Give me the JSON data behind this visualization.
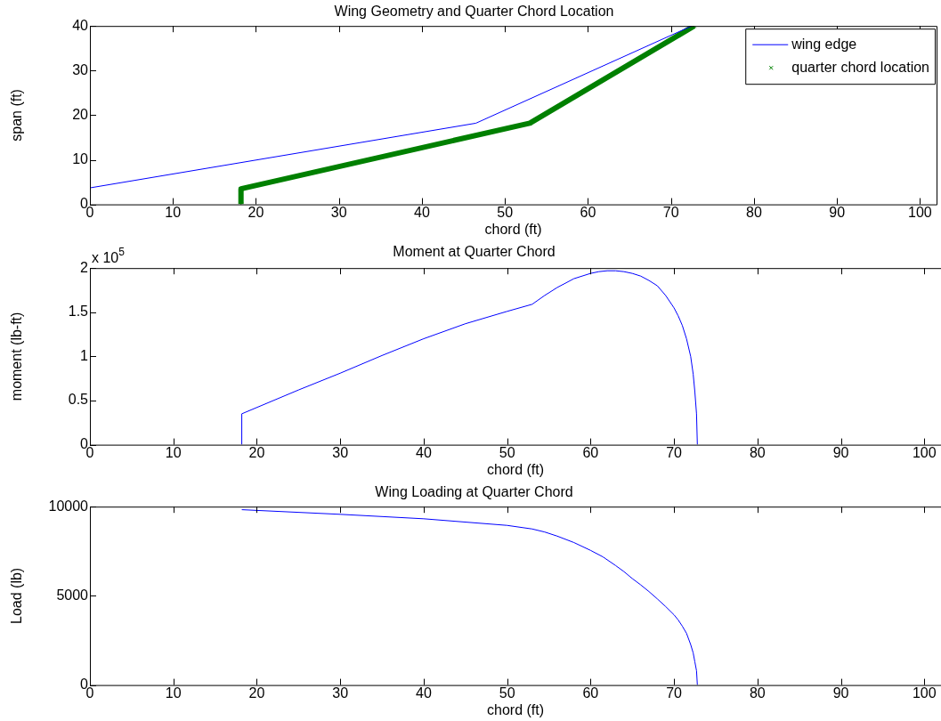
{
  "chart_data": [
    {
      "type": "line",
      "title": "Wing Geometry and Quarter Chord Location",
      "xlabel": "chord (ft)",
      "ylabel": "span (ft)",
      "xlim": [
        0,
        102
      ],
      "xticks": [
        0,
        10,
        20,
        30,
        40,
        50,
        60,
        70,
        80,
        90,
        100
      ],
      "ylim": [
        0,
        40
      ],
      "yticks": [
        0,
        10,
        20,
        30,
        40
      ],
      "legend": "top right",
      "grid": false,
      "series": [
        {
          "name": "wing edge",
          "color": "#0000ff",
          "x": [
            0,
            46.5,
            72.5
          ],
          "values": [
            3.7,
            18.2,
            40
          ]
        },
        {
          "name": "quarter chord location",
          "color": "#008000",
          "marker": "cross",
          "x": [
            18.2,
            18.2,
            53,
            72.8
          ],
          "values": [
            0,
            3.5,
            18.2,
            40
          ]
        }
      ]
    },
    {
      "type": "line",
      "title": "Moment at Quarter Chord",
      "xlabel": "chord (ft)",
      "ylabel": "moment (lb-ft)",
      "annotations": [
        "x 10$^{5}$"
      ],
      "xlim": [
        0,
        102
      ],
      "xticks": [
        0,
        10,
        20,
        30,
        40,
        50,
        60,
        70,
        80,
        90,
        100
      ],
      "ylim": [
        0,
        2
      ],
      "yticks": [
        0,
        0.5,
        1,
        1.5,
        2
      ],
      "legend": false,
      "grid": false,
      "series": [
        {
          "color": "#0000ff",
          "x": [
            18.2,
            18.2,
            25,
            30,
            35,
            40,
            45,
            50,
            53,
            54.5,
            56,
            58,
            60,
            61,
            62,
            63,
            64,
            65,
            66,
            67,
            68,
            69,
            70,
            70.5,
            71,
            71.5,
            72,
            72.3,
            72.5,
            72.7,
            72.8
          ],
          "values": [
            0,
            0.35,
            0.62,
            0.81,
            1.01,
            1.2,
            1.37,
            1.51,
            1.59,
            1.69,
            1.78,
            1.88,
            1.94,
            1.96,
            1.97,
            1.97,
            1.96,
            1.94,
            1.91,
            1.86,
            1.8,
            1.69,
            1.55,
            1.46,
            1.35,
            1.2,
            1.0,
            0.8,
            0.6,
            0.35,
            0
          ]
        }
      ]
    },
    {
      "type": "line",
      "title": "Wing Loading at Quarter Chord",
      "xlabel": "chord (ft)",
      "ylabel": "Load (lb)",
      "xlim": [
        0,
        102
      ],
      "xticks": [
        0,
        10,
        20,
        30,
        40,
        50,
        60,
        70,
        80,
        90,
        100
      ],
      "ylim": [
        0,
        10000
      ],
      "yticks": [
        0,
        5000,
        10000
      ],
      "legend": false,
      "grid": false,
      "series": [
        {
          "color": "#0000ff",
          "x": [
            18.2,
            30,
            40,
            50,
            53,
            54.5,
            56,
            58,
            60,
            61.5,
            63,
            64,
            65,
            66,
            67,
            68,
            69,
            70,
            70.5,
            71,
            71.5,
            72,
            72.3,
            72.5,
            72.7,
            72.8
          ],
          "values": [
            9830,
            9570,
            9320,
            8950,
            8750,
            8580,
            8350,
            7990,
            7550,
            7180,
            6700,
            6360,
            5970,
            5620,
            5240,
            4830,
            4400,
            3940,
            3650,
            3300,
            2900,
            2270,
            1800,
            1300,
            800,
            0
          ]
        }
      ]
    }
  ]
}
